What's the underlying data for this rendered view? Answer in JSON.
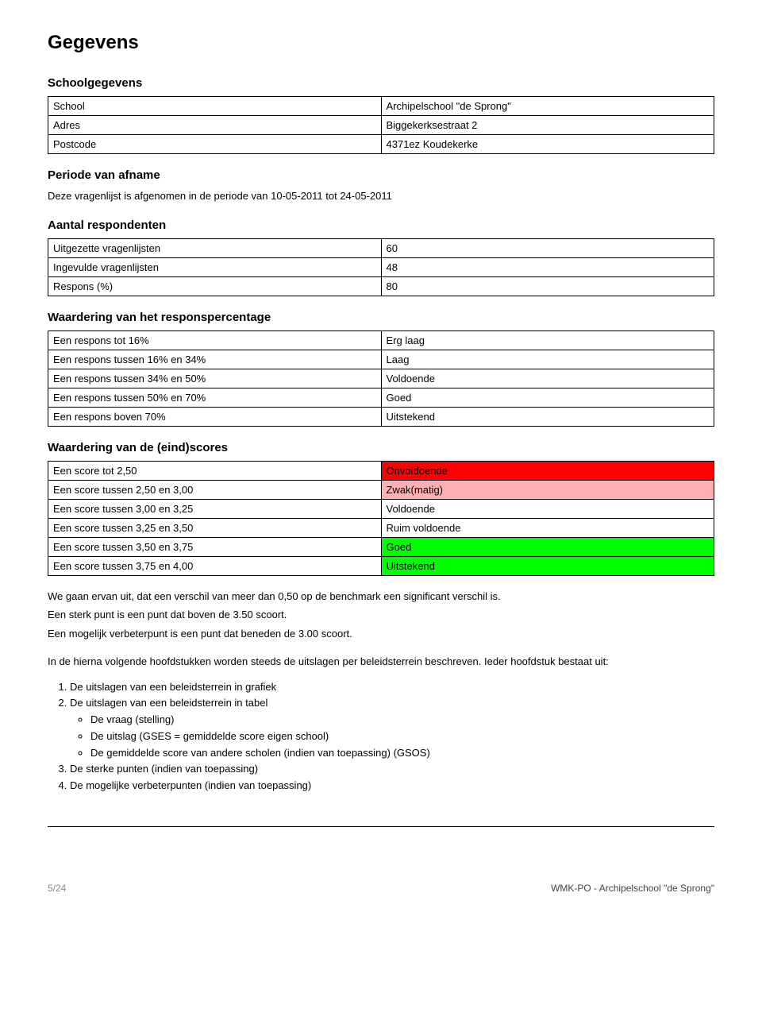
{
  "page_title": "Gegevens",
  "sections": {
    "schoolgegevens": {
      "heading": "Schoolgegevens",
      "rows": [
        {
          "label": "School",
          "value": "Archipelschool \"de Sprong\""
        },
        {
          "label": "Adres",
          "value": "Biggekerksestraat 2"
        },
        {
          "label": "Postcode",
          "value": "4371ez Koudekerke"
        }
      ]
    },
    "periode": {
      "heading": "Periode van afname",
      "text": "Deze vragenlijst is afgenomen in de periode van 10-05-2011 tot 24-05-2011"
    },
    "respondenten": {
      "heading": "Aantal respondenten",
      "rows": [
        {
          "label": "Uitgezette vragenlijsten",
          "value": "60"
        },
        {
          "label": "Ingevulde vragenlijsten",
          "value": "48"
        },
        {
          "label": "Respons (%)",
          "value": "80"
        }
      ]
    },
    "responspercentage": {
      "heading": "Waardering van het responspercentage",
      "rows": [
        {
          "label": "Een respons tot 16%",
          "value": "Erg laag",
          "bg": "#ffffff"
        },
        {
          "label": "Een respons tussen 16% en 34%",
          "value": "Laag",
          "bg": "#ffffff"
        },
        {
          "label": "Een respons tussen 34% en 50%",
          "value": "Voldoende",
          "bg": "#ffffff"
        },
        {
          "label": "Een respons tussen 50% en 70%",
          "value": "Goed",
          "bg": "#ffffff"
        },
        {
          "label": "Een respons boven 70%",
          "value": "Uitstekend",
          "bg": "#ffffff"
        }
      ]
    },
    "eindscores": {
      "heading": "Waardering van de (eind)scores",
      "rows": [
        {
          "label": "Een score tot 2,50",
          "value": "Onvoldoende",
          "bg": "#ff0000"
        },
        {
          "label": "Een score tussen 2,50 en 3,00",
          "value": "Zwak(matig)",
          "bg": "#ffb0b0"
        },
        {
          "label": "Een score tussen 3,00 en 3,25",
          "value": "Voldoende",
          "bg": "#ffffff"
        },
        {
          "label": "Een score tussen 3,25 en 3,50",
          "value": "Ruim voldoende",
          "bg": "#ffffff"
        },
        {
          "label": "Een score tussen 3,50 en 3,75",
          "value": "Goed",
          "bg": "#00ff00"
        },
        {
          "label": "Een score tussen 3,75 en 4,00",
          "value": "Uitstekend",
          "bg": "#00ff00"
        }
      ]
    }
  },
  "paragraphs": {
    "p1": "We gaan ervan uit, dat een verschil van meer dan 0,50 op de benchmark een significant verschil is.",
    "p2": "Een sterk punt is een punt dat boven de 3.50 scoort.",
    "p3": "Een mogelijk verbeterpunt is een punt dat beneden de 3.00 scoort.",
    "p4": "In de hierna volgende hoofdstukken worden steeds de uitslagen per beleidsterrein beschreven. Ieder hoofdstuk bestaat uit:"
  },
  "list": {
    "items": [
      "De uitslagen van een beleidsterrein in grafiek",
      "De uitslagen van een beleidsterrein in tabel",
      "De sterke punten (indien van toepassing)",
      "De mogelijke verbeterpunten (indien van toepassing)"
    ],
    "sub_items": [
      "De vraag (stelling)",
      "De uitslag (GSES = gemiddelde score eigen school)",
      "De gemiddelde score van andere scholen (indien van toepassing) (GSOS)"
    ]
  },
  "footer": {
    "page_num": "5/24",
    "right": "WMK-PO - Archipelschool \"de Sprong\""
  },
  "colors": {
    "border": "#000000",
    "text": "#000000",
    "footer_text": "#666666"
  }
}
